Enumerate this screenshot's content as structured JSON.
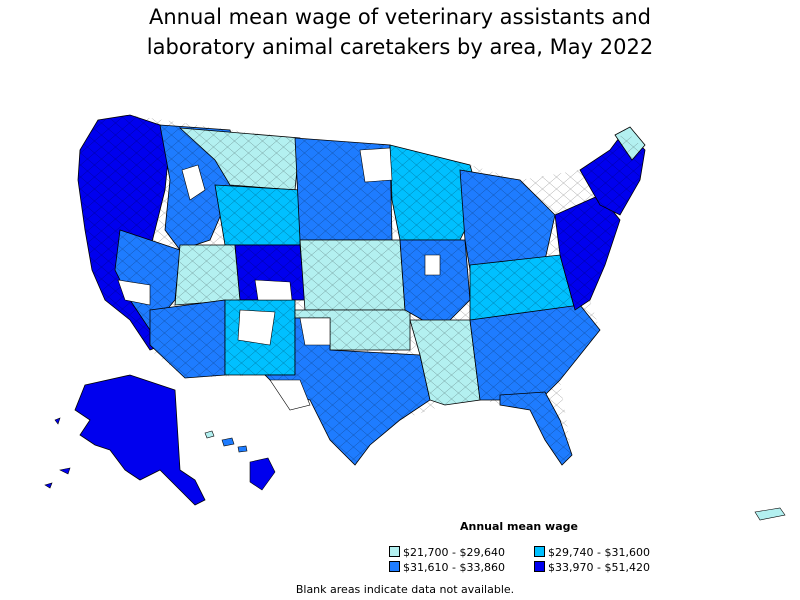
{
  "title_line1": "Annual mean wage of veterinary assistants and",
  "title_line2": "laboratory animal caretakers by area, May 2022",
  "legend": {
    "title": "Annual mean wage",
    "items": [
      {
        "label": "$21,700 - $29,640",
        "color": "#b3f0f0"
      },
      {
        "label": "$29,740 - $31,600",
        "color": "#00c0ff"
      },
      {
        "label": "$31,610 - $33,860",
        "color": "#1e7cff"
      },
      {
        "label": "$33,970 - $51,420",
        "color": "#0000ee"
      }
    ]
  },
  "note": "Blank areas indicate data not available.",
  "colors": {
    "level1": "#b3f0f0",
    "level2": "#00c0ff",
    "level3": "#1e7cff",
    "level4": "#0000ee",
    "blank": "#ffffff",
    "border": "#000000"
  }
}
